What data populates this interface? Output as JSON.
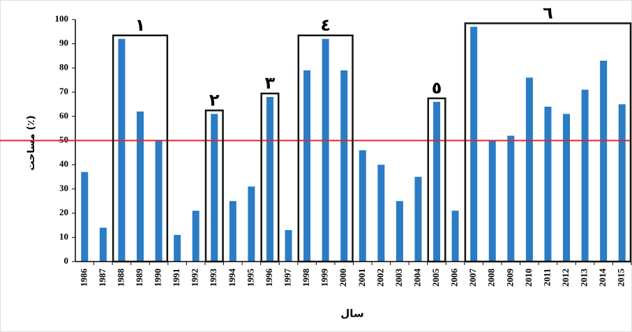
{
  "chart_data": {
    "type": "bar",
    "y_label": "مساحت (٪)",
    "x_label": "سال",
    "categories": [
      "1986",
      "1987",
      "1988",
      "1989",
      "1990",
      "1991",
      "1992",
      "1993",
      "1994",
      "1995",
      "1996",
      "1997",
      "1998",
      "1999",
      "2000",
      "2001",
      "2002",
      "2003",
      "2004",
      "2005",
      "2006",
      "2007",
      "2008",
      "2009",
      "2010",
      "2011",
      "2012",
      "2013",
      "2014",
      "2015"
    ],
    "values": [
      37,
      14,
      92,
      62,
      50,
      11,
      21,
      61,
      25,
      31,
      68,
      13,
      79,
      92,
      79,
      46,
      40,
      25,
      35,
      66,
      21,
      97,
      50,
      52,
      76,
      64,
      61,
      71,
      83,
      65
    ],
    "color": "#2a7cc4",
    "ylim": [
      0,
      100
    ],
    "yticks": [
      0,
      10,
      20,
      30,
      40,
      50,
      60,
      70,
      80,
      90,
      100
    ],
    "reference_line": {
      "value": 50,
      "color": "#e0262b"
    },
    "groups": [
      {
        "label": "١",
        "categories": [
          "1988",
          "1989",
          "1990"
        ]
      },
      {
        "label": "٢",
        "categories": [
          "1993"
        ]
      },
      {
        "label": "٣",
        "categories": [
          "1996"
        ]
      },
      {
        "label": "٤",
        "categories": [
          "1998",
          "1999",
          "2000"
        ]
      },
      {
        "label": "٥",
        "categories": [
          "2005"
        ]
      },
      {
        "label": "٦",
        "categories": [
          "2007",
          "2008",
          "2009",
          "2010",
          "2011",
          "2012",
          "2013",
          "2014",
          "2015"
        ]
      }
    ]
  }
}
